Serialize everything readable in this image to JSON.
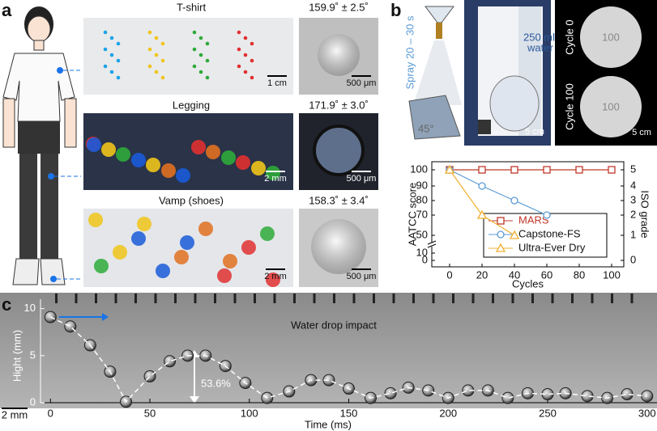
{
  "panel_a": {
    "label": "a",
    "rows": [
      {
        "title": "T-shirt",
        "angle": "159.9˚ ± 2.5˚",
        "scale": "1 cm",
        "zoom_scale": "500 μm"
      },
      {
        "title": "Legging",
        "angle": "171.9˚ ± 3.0˚",
        "scale": "2 mm",
        "zoom_scale": "500 μm"
      },
      {
        "title": "Vamp (shoes)",
        "angle": "158.3˚ ± 3.4˚",
        "scale": "2 mm",
        "zoom_scale": "500 μm"
      }
    ]
  },
  "panel_b": {
    "label": "b",
    "spray": "Spray 20 – 30 s",
    "tilt": "45°",
    "water": [
      "250 ml",
      "water"
    ],
    "scale": "5 cm",
    "cycles": [
      {
        "name": "Cycle 0",
        "score": "100"
      },
      {
        "name": "Cycle 100",
        "score": "100"
      }
    ],
    "disc_scale": "5 cm"
  },
  "panel_c": {
    "label": "c",
    "title": "Water drop impact",
    "rebound": "53.6%",
    "scale": "2 mm"
  },
  "chart_data": [
    {
      "type": "line",
      "x": [
        0,
        20,
        40,
        60,
        80,
        100
      ],
      "series": [
        {
          "name": "MARS",
          "color": "#c0392b",
          "marker": "square",
          "values": [
            100,
            100,
            100,
            100,
            100,
            100
          ]
        },
        {
          "name": "Capstone-FS",
          "color": "#5b9bd5",
          "marker": "circle",
          "values": [
            100,
            90,
            80,
            70,
            null,
            null
          ]
        },
        {
          "name": "Ultra-Ever Dry",
          "color": "#f0b030",
          "marker": "triangle",
          "values": [
            100,
            70,
            50,
            null,
            null,
            null
          ]
        }
      ],
      "xlim": [
        -11,
        107.5
      ],
      "xticks": [
        0,
        20,
        40,
        60,
        80,
        100
      ],
      "xlabel": "Cycles",
      "ylim": [
        0,
        100
      ],
      "yticks": [
        0,
        10,
        50,
        70,
        80,
        90,
        100
      ],
      "ylabel": "AATCC score",
      "y2lim": [
        0,
        5
      ],
      "y2ticks": [
        0,
        1,
        2,
        3,
        4,
        5
      ],
      "y2label": "ISO grade",
      "legend": "center right"
    },
    {
      "type": "scatter",
      "color": "#ffffff",
      "line_style": "dashed",
      "x": [
        0,
        10,
        20,
        30,
        38,
        50,
        60,
        69,
        78,
        88,
        98,
        109,
        120,
        131,
        140,
        150,
        161,
        171,
        180,
        190,
        200,
        210,
        220,
        230,
        240,
        250,
        259,
        270,
        280,
        290,
        300
      ],
      "values": [
        9.1,
        8.1,
        6.1,
        3.3,
        0.1,
        2.8,
        4.4,
        5.0,
        5.0,
        3.9,
        2.1,
        0.5,
        1.2,
        2.4,
        2.4,
        1.5,
        0.5,
        1.0,
        1.6,
        1.3,
        0.5,
        1.3,
        1.3,
        0.5,
        1.0,
        0.9,
        1.0,
        0.7,
        0.5,
        0.9,
        0.7
      ],
      "xlim": [
        -5,
        305
      ],
      "xticks": [
        0,
        50,
        100,
        150,
        200,
        250,
        300
      ],
      "xlabel": "Time (ms)",
      "ylim": [
        0,
        11
      ],
      "yticks": [
        0,
        5,
        10
      ],
      "ylabel": "Hight (mm)"
    }
  ]
}
